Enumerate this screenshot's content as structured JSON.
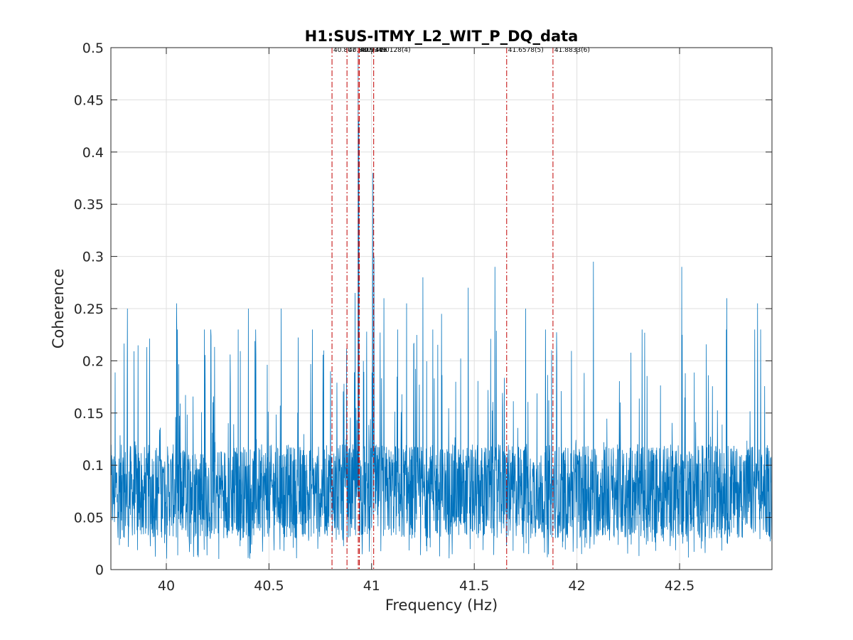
{
  "chart_data": {
    "type": "line",
    "title": "H1:SUS-ITMY_L2_WIT_P_DQ_data",
    "xlabel": "Frequency (Hz)",
    "ylabel": "Coherence",
    "xlim": [
      39.73,
      42.95
    ],
    "ylim": [
      0,
      0.5
    ],
    "grid": true,
    "line_color": "#0072BD",
    "marker_color": "#C00000",
    "xticks": [
      40,
      40.5,
      41,
      41.5,
      42,
      42.5
    ],
    "xtick_labels": [
      "40",
      "40.5",
      "41",
      "41.5",
      "42",
      "42.5"
    ],
    "yticks": [
      0,
      0.05,
      0.1,
      0.15,
      0.2,
      0.25,
      0.3,
      0.35,
      0.4,
      0.45,
      0.5
    ],
    "ytick_labels": [
      "0",
      "0.05",
      "0.1",
      "0.15",
      "0.2",
      "0.25",
      "0.3",
      "0.35",
      "0.4",
      "0.45",
      "0.5"
    ],
    "markers": [
      {
        "x": 40.807,
        "label": "40.807"
      },
      {
        "x": 40.88,
        "label": "40.8807"
      },
      {
        "x": 40.935,
        "label": "40.9349"
      },
      {
        "x": 40.94,
        "label": "40.9406"
      },
      {
        "x": 41.01,
        "label": "41.0128(4)"
      },
      {
        "x": 41.6578,
        "label": "41.6578(5)"
      },
      {
        "x": 41.8833,
        "label": "41.8833(6)"
      }
    ],
    "peaks": [
      {
        "x": 40.934,
        "y": 0.5
      },
      {
        "x": 40.938,
        "y": 0.43
      },
      {
        "x": 41.006,
        "y": 0.38
      },
      {
        "x": 41.012,
        "y": 0.3
      },
      {
        "x": 40.92,
        "y": 0.265
      },
      {
        "x": 41.6,
        "y": 0.29
      },
      {
        "x": 42.08,
        "y": 0.295
      },
      {
        "x": 42.51,
        "y": 0.29
      },
      {
        "x": 41.25,
        "y": 0.28
      },
      {
        "x": 40.05,
        "y": 0.255
      },
      {
        "x": 39.81,
        "y": 0.25
      },
      {
        "x": 41.06,
        "y": 0.26
      },
      {
        "x": 42.73,
        "y": 0.26
      },
      {
        "x": 41.47,
        "y": 0.27
      },
      {
        "x": 42.88,
        "y": 0.255
      },
      {
        "x": 40.56,
        "y": 0.25
      },
      {
        "x": 41.17,
        "y": 0.255
      },
      {
        "x": 41.75,
        "y": 0.25
      },
      {
        "x": 40.8,
        "y": 0.19
      },
      {
        "x": 41.34,
        "y": 0.245
      },
      {
        "x": 40.4,
        "y": 0.25
      }
    ],
    "baseline": {
      "mean": 0.075,
      "spread": 0.05,
      "max": 0.23
    }
  }
}
